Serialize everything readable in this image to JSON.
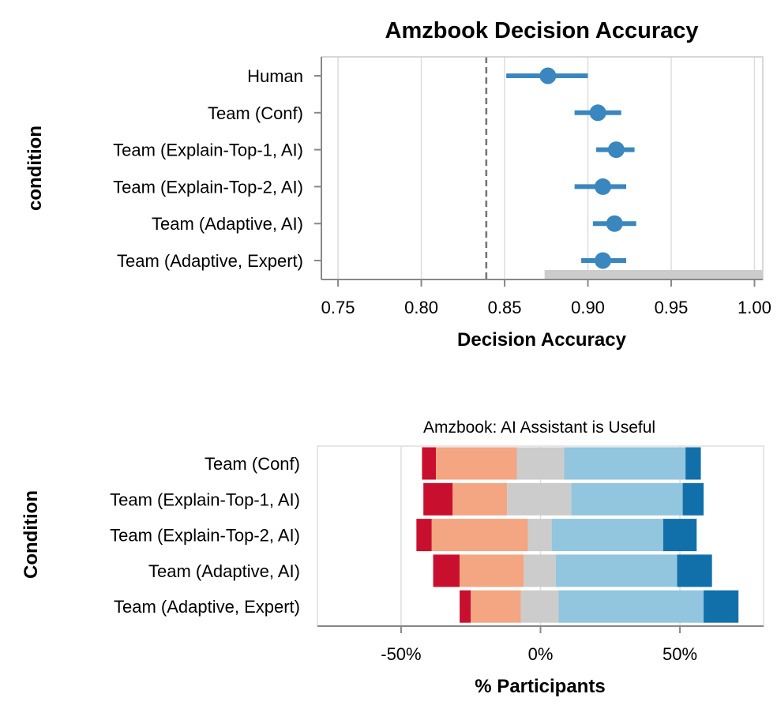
{
  "chart_data": [
    {
      "type": "scatter",
      "title": "Amzbook Decision Accuracy",
      "xlabel": "Decision Accuracy",
      "ylabel": "condition",
      "xlim": [
        0.74,
        1.005
      ],
      "xticks": [
        "0.75",
        "0.80",
        "0.85",
        "0.90",
        "0.95",
        "1.00"
      ],
      "xtick_values": [
        0.75,
        0.8,
        0.85,
        0.9,
        0.95,
        1.0
      ],
      "grid": true,
      "reference_line": 0.839,
      "shaded_range": [
        0.874,
        1.005
      ],
      "colors": {
        "point": "#3a87c0",
        "reference_line": "#777777",
        "shade": "#cccccc",
        "grid": "#dddddd"
      },
      "categories": [
        "Human",
        "Team (Conf)",
        "Team (Explain-Top-1, AI)",
        "Team (Explain-Top-2, AI)",
        "Team (Adaptive, AI)",
        "Team (Adaptive, Expert)"
      ],
      "points": [
        {
          "mean": 0.876,
          "low": 0.851,
          "high": 0.9
        },
        {
          "mean": 0.906,
          "low": 0.892,
          "high": 0.92
        },
        {
          "mean": 0.917,
          "low": 0.905,
          "high": 0.928
        },
        {
          "mean": 0.909,
          "low": 0.892,
          "high": 0.923
        },
        {
          "mean": 0.916,
          "low": 0.903,
          "high": 0.929
        },
        {
          "mean": 0.909,
          "low": 0.896,
          "high": 0.923
        }
      ]
    },
    {
      "type": "bar",
      "stacked": "diverging",
      "title": "Amzbook: AI Assistant is Useful",
      "xlabel": "% Participants",
      "ylabel": "Condition",
      "xlim": [
        -80,
        80
      ],
      "xticks": [
        "-50%",
        "0%",
        "50%"
      ],
      "xtick_values": [
        -50,
        0,
        50
      ],
      "grid": true,
      "categories": [
        "Team (Conf)",
        "Team (Explain-Top-1, AI)",
        "Team (Explain-Top-2, AI)",
        "Team (Adaptive, AI)",
        "Team (Adaptive, Expert)"
      ],
      "segment_colors": [
        "#c8102e",
        "#f4a582",
        "#cccccc",
        "#92c5de",
        "#1170aa"
      ],
      "rows": [
        [
          -42.5,
          -37.5,
          -8.5,
          8.5,
          52.0,
          57.5
        ],
        [
          -42.0,
          -31.5,
          -12.0,
          11.0,
          51.0,
          58.5
        ],
        [
          -44.5,
          -39.0,
          -4.5,
          4.0,
          44.0,
          56.0
        ],
        [
          -38.5,
          -29.0,
          -6.0,
          5.5,
          49.0,
          61.5
        ],
        [
          -29.0,
          -25.0,
          -7.0,
          6.5,
          58.5,
          71.0
        ]
      ]
    }
  ]
}
